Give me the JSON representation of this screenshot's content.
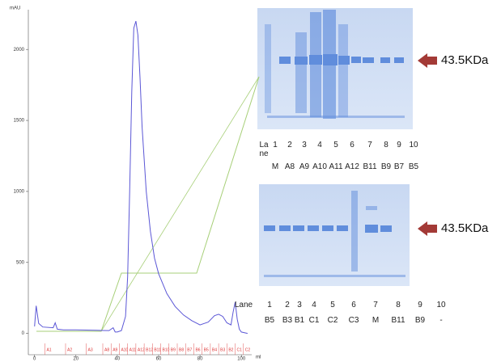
{
  "chart_data": {
    "type": "line",
    "y_label": "mAU",
    "x_label": "ml",
    "color": "#5b57d6",
    "x": [
      0,
      0.8,
      2,
      4,
      9,
      10,
      11,
      14,
      20,
      30,
      36,
      38,
      39,
      40,
      42,
      44,
      45,
      46,
      47,
      48,
      49,
      50,
      51,
      52,
      54,
      56,
      58,
      60,
      64,
      68,
      72,
      76,
      80,
      84,
      87,
      89,
      91,
      93,
      95,
      96,
      97,
      98,
      99,
      100,
      103
    ],
    "values": [
      50,
      195,
      70,
      45,
      40,
      75,
      30,
      25,
      25,
      22,
      20,
      40,
      10,
      10,
      20,
      120,
      400,
      1000,
      1700,
      2150,
      2200,
      2100,
      1800,
      1450,
      1000,
      720,
      530,
      420,
      280,
      190,
      130,
      90,
      60,
      80,
      125,
      135,
      120,
      75,
      60,
      150,
      220,
      100,
      30,
      10,
      0
    ],
    "xlim": [
      -3,
      105
    ],
    "ylim": [
      -150,
      2280
    ],
    "xticks": [
      0,
      20,
      40,
      60,
      80,
      100
    ],
    "yticks": [
      0,
      500,
      1000,
      1500,
      2000
    ],
    "fractions": {
      "labels": [
        "A1",
        "A2",
        "A3",
        "A8",
        "A9",
        "A10",
        "A11",
        "A12",
        "B12",
        "B11",
        "B10",
        "B9",
        "B8",
        "B7",
        "B6",
        "B5",
        "B4",
        "B3",
        "B2",
        "C1",
        "C2"
      ],
      "x": [
        5,
        15,
        25,
        33,
        37,
        41,
        45,
        49,
        53,
        57,
        61,
        65,
        69,
        73,
        77,
        81,
        85,
        89,
        93,
        97,
        101
      ]
    }
  },
  "gels": [
    {
      "lane_header": "Lane",
      "lanes": [
        "1",
        "2",
        "3",
        "4",
        "5",
        "6",
        "7",
        "8",
        "9",
        "10"
      ],
      "samples": [
        "M",
        "A8",
        "A9",
        "A10",
        "A11",
        "A12",
        "B11",
        "B9",
        "B7",
        "B5"
      ],
      "marker": "43.5KDa"
    },
    {
      "lane_header": "Lane",
      "lanes": [
        "1",
        "2",
        "3",
        "4",
        "5",
        "6",
        "7",
        "8",
        "9",
        "10"
      ],
      "samples": [
        "B5",
        "B3",
        "B1",
        "C1",
        "C2",
        "C3",
        "M",
        "B11",
        "B9",
        "-"
      ],
      "marker": "43.5KDa"
    }
  ]
}
